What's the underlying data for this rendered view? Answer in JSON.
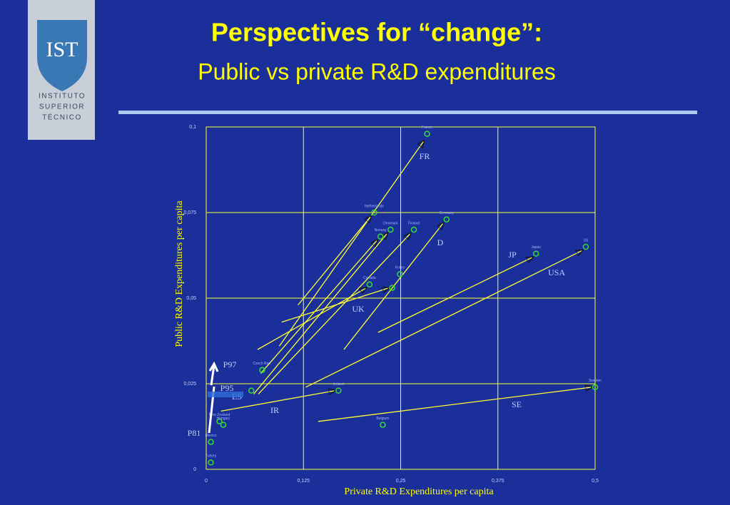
{
  "logo": {
    "mark": "IST",
    "lines": [
      "INSTITUTO",
      "SUPERIOR",
      "TÉCNICO"
    ]
  },
  "chart_data": {
    "type": "scatter",
    "title": "Perspectives for “change”:",
    "subtitle": "Public vs private R&D expenditures",
    "x_label": "Private R&D Expenditures per capita",
    "y_label": "Public R&D Expenditures per capita",
    "xlim": [
      0,
      0.5
    ],
    "ylim": [
      0,
      0.1
    ],
    "xticks": [
      0,
      {
        "value": 0.125,
        "label": "0,125"
      },
      {
        "value": 0.25,
        "label": "0,25"
      },
      {
        "value": 0.375,
        "label": "0,375"
      },
      {
        "value": 0.5,
        "label": "0,5"
      }
    ],
    "yticks": [
      0,
      {
        "value": 0.025,
        "label": "0,025"
      },
      {
        "value": 0.05,
        "label": "0,05"
      },
      {
        "value": 0.075,
        "label": "0,075"
      },
      {
        "value": 0.1,
        "label": "0,1"
      }
    ],
    "grid": true,
    "color": "#33dd33",
    "points": {
      "labels": [
        "France",
        "Netherlands",
        "Denmark",
        "Finland",
        "Germany",
        "Norway",
        "Japan",
        "US",
        "Korea",
        "Canada",
        null,
        "Czech Rep.",
        "Ireland",
        "Sweden",
        null,
        "New Zealand",
        "Hungary",
        "Belgium",
        "Mexico",
        "Turkey"
      ],
      "x": [
        0.284,
        0.216,
        0.237,
        0.267,
        0.309,
        0.224,
        0.424,
        0.488,
        0.249,
        0.21,
        0.239,
        0.072,
        0.17,
        0.5,
        0.058,
        0.017,
        0.022,
        0.227,
        0.006,
        0.006
      ],
      "y": [
        0.098,
        0.075,
        0.07,
        0.07,
        0.073,
        0.068,
        0.063,
        0.065,
        0.057,
        0.054,
        0.053,
        0.029,
        0.023,
        0.024,
        0.023,
        0.014,
        0.013,
        0.013,
        0.008,
        0.002
      ]
    },
    "arrow_color": "#ffff33",
    "arrows": [
      {
        "x": [
          0.094,
          0.28
        ],
        "y": [
          0.036,
          0.096
        ]
      },
      {
        "x": [
          0.118,
          0.212
        ],
        "y": [
          0.048,
          0.074
        ]
      },
      {
        "x": [
          0.061,
          0.233
        ],
        "y": [
          0.022,
          0.069
        ]
      },
      {
        "x": [
          0.067,
          0.263
        ],
        "y": [
          0.022,
          0.069
        ]
      },
      {
        "x": [
          0.177,
          0.305
        ],
        "y": [
          0.035,
          0.072
        ]
      },
      {
        "x": [
          0.07,
          0.22
        ],
        "y": [
          0.028,
          0.067
        ]
      },
      {
        "x": [
          0.221,
          0.42
        ],
        "y": [
          0.04,
          0.062
        ]
      },
      {
        "x": [
          0.128,
          0.484
        ],
        "y": [
          0.024,
          0.064
        ]
      },
      {
        "x": [
          0.066,
          0.206
        ],
        "y": [
          0.035,
          0.053
        ]
      },
      {
        "x": [
          0.097,
          0.235
        ],
        "y": [
          0.043,
          0.053
        ]
      },
      {
        "x": [
          0.019,
          0.166
        ],
        "y": [
          0.017,
          0.023
        ]
      },
      {
        "x": [
          0.144,
          0.496
        ],
        "y": [
          0.014,
          0.024
        ]
      }
    ],
    "annotations": [
      "FR",
      "D",
      "JP",
      "USA",
      "UK",
      "SE",
      "IR",
      "ES",
      "P97",
      "P95",
      "P81"
    ]
  }
}
